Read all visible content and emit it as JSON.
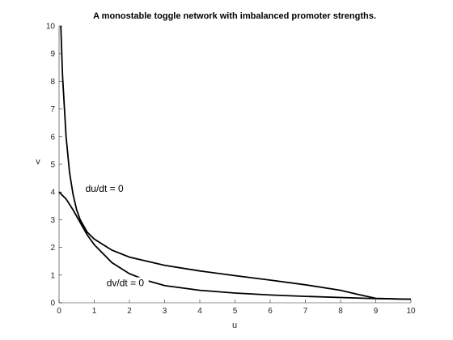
{
  "chart_data": {
    "type": "line",
    "title": "A monostable toggle network with imbalanced promoter strengths.",
    "xlabel": "u",
    "ylabel": "v",
    "xlim": [
      0,
      10
    ],
    "ylim": [
      0,
      10
    ],
    "xticks": [
      "0",
      "1",
      "2",
      "3",
      "4",
      "5",
      "6",
      "7",
      "8",
      "9",
      "10"
    ],
    "yticks": [
      "0",
      "1",
      "2",
      "3",
      "4",
      "5",
      "6",
      "7",
      "8",
      "9",
      "10"
    ],
    "grid": false,
    "series": [
      {
        "name": "du/dt = 0",
        "x": [
          0.05,
          0.1,
          0.2,
          0.3,
          0.4,
          0.5,
          0.6,
          0.8,
          1.0,
          1.5,
          2.0,
          3.0,
          4.0,
          5.0,
          6.0,
          7.0,
          8.0,
          8.5,
          9.0,
          9.5,
          10.0
        ],
        "y": [
          10.0,
          8.2,
          6.0,
          4.7,
          3.9,
          3.35,
          3.0,
          2.55,
          2.3,
          1.9,
          1.65,
          1.35,
          1.15,
          0.98,
          0.82,
          0.65,
          0.45,
          0.3,
          0.16,
          0.14,
          0.13
        ]
      },
      {
        "name": "dv/dt = 0",
        "x": [
          0.0,
          0.2,
          0.4,
          0.6,
          0.8,
          1.0,
          1.5,
          2.0,
          2.5,
          3.0,
          4.0,
          5.0,
          6.0,
          7.0,
          8.0,
          9.0,
          10.0
        ],
        "y": [
          4.0,
          3.75,
          3.35,
          2.9,
          2.45,
          2.1,
          1.45,
          1.05,
          0.8,
          0.62,
          0.45,
          0.35,
          0.28,
          0.23,
          0.19,
          0.15,
          0.13
        ]
      }
    ],
    "annotations": [
      {
        "text": "du/dt = 0",
        "x": 0.75,
        "y": 4.0
      },
      {
        "text": "dv/dt = 0",
        "x": 1.35,
        "y": 0.6
      }
    ]
  }
}
